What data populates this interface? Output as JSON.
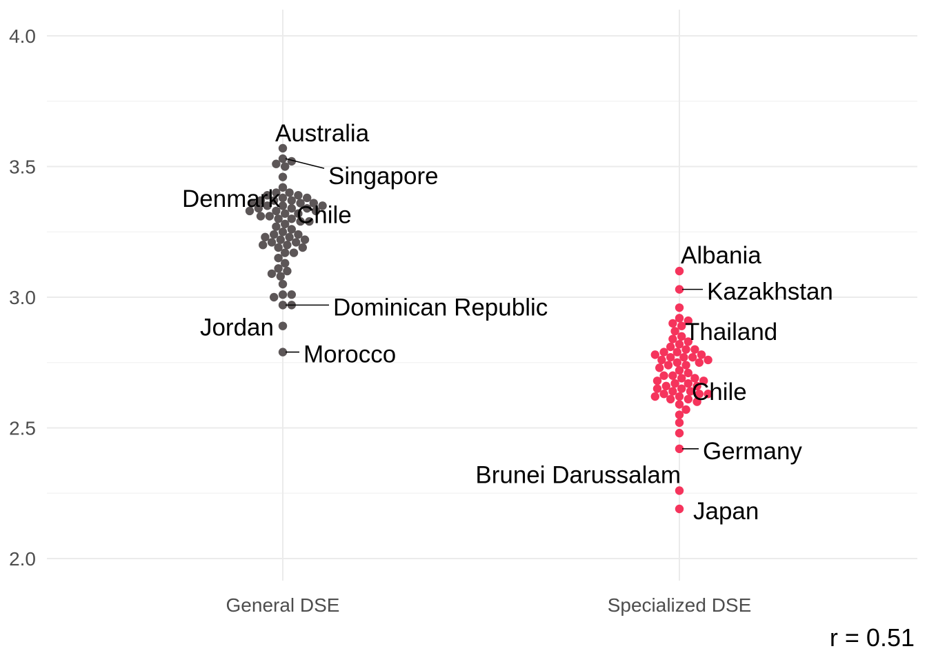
{
  "chart_data": {
    "type": "scatter",
    "title": "",
    "xlabel": "",
    "ylabel": "",
    "categories": [
      "General DSE",
      "Specialized DSE"
    ],
    "ylim": [
      1.85,
      4.1
    ],
    "y_ticks": [
      "2.0",
      "2.5",
      "3.0",
      "3.5",
      "4.0"
    ],
    "grid": true,
    "colors": {
      "General DSE": "#5c5657",
      "Specialized DSE": "#f5345c"
    },
    "series": [
      {
        "category": "General DSE",
        "values": [
          3.57,
          3.53,
          3.52,
          3.51,
          3.5,
          3.46,
          3.42,
          3.4,
          3.4,
          3.39,
          3.39,
          3.38,
          3.38,
          3.37,
          3.37,
          3.37,
          3.36,
          3.36,
          3.36,
          3.35,
          3.35,
          3.35,
          3.34,
          3.34,
          3.34,
          3.33,
          3.33,
          3.33,
          3.32,
          3.32,
          3.31,
          3.31,
          3.3,
          3.3,
          3.29,
          3.29,
          3.28,
          3.27,
          3.26,
          3.25,
          3.24,
          3.24,
          3.23,
          3.23,
          3.22,
          3.22,
          3.21,
          3.21,
          3.2,
          3.2,
          3.19,
          3.19,
          3.17,
          3.17,
          3.15,
          3.13,
          3.11,
          3.1,
          3.09,
          3.08,
          3.05,
          3.01,
          3.01,
          3.0,
          2.97,
          2.97,
          2.89,
          2.79
        ]
      },
      {
        "category": "Specialized DSE",
        "values": [
          3.1,
          3.03,
          2.96,
          2.92,
          2.91,
          2.9,
          2.89,
          2.87,
          2.85,
          2.84,
          2.83,
          2.82,
          2.81,
          2.8,
          2.8,
          2.79,
          2.79,
          2.78,
          2.78,
          2.77,
          2.77,
          2.77,
          2.76,
          2.76,
          2.75,
          2.75,
          2.74,
          2.74,
          2.73,
          2.72,
          2.71,
          2.7,
          2.7,
          2.69,
          2.69,
          2.68,
          2.68,
          2.67,
          2.67,
          2.66,
          2.66,
          2.65,
          2.65,
          2.64,
          2.64,
          2.63,
          2.63,
          2.63,
          2.62,
          2.62,
          2.61,
          2.61,
          2.6,
          2.59,
          2.57,
          2.55,
          2.52,
          2.48,
          2.42,
          2.26,
          2.19
        ]
      }
    ],
    "annotations": [
      {
        "category": "General DSE",
        "text": "Australia",
        "y": 3.57
      },
      {
        "category": "General DSE",
        "text": "Singapore",
        "y": 3.53
      },
      {
        "category": "General DSE",
        "text": "Denmark",
        "y": 3.39
      },
      {
        "category": "General DSE",
        "text": "Chile",
        "y": 3.35
      },
      {
        "category": "General DSE",
        "text": "Dominican Republic",
        "y": 2.97
      },
      {
        "category": "General DSE",
        "text": "Jordan",
        "y": 2.89
      },
      {
        "category": "General DSE",
        "text": "Morocco",
        "y": 2.79
      },
      {
        "category": "Specialized DSE",
        "text": "Albania",
        "y": 3.1
      },
      {
        "category": "Specialized DSE",
        "text": "Kazakhstan",
        "y": 3.03
      },
      {
        "category": "Specialized DSE",
        "text": "Thailand",
        "y": 2.91
      },
      {
        "category": "Specialized DSE",
        "text": "Chile",
        "y": 2.63
      },
      {
        "category": "Specialized DSE",
        "text": "Germany",
        "y": 2.42
      },
      {
        "category": "Specialized DSE",
        "text": "Brunei Darussalam",
        "y": 2.26
      },
      {
        "category": "Specialized DSE",
        "text": "Japan",
        "y": 2.19
      }
    ],
    "caption": "r = 0.51"
  }
}
